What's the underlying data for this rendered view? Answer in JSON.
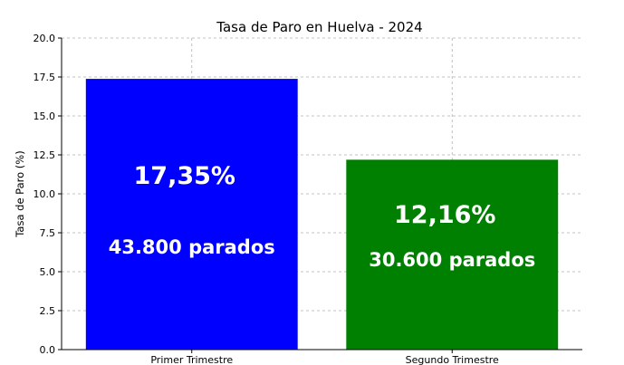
{
  "chart_data": {
    "type": "bar",
    "title": "Tasa de Paro en Huelva - 2024",
    "ylabel": "Tasa de Paro (%)",
    "xlabel": "",
    "categories": [
      "Primer Trimestre",
      "Segundo Trimestre"
    ],
    "values": [
      17.35,
      12.16
    ],
    "ylim": [
      0,
      20
    ],
    "yticks": [
      "0.0",
      "2.5",
      "5.0",
      "7.5",
      "10.0",
      "12.5",
      "15.0",
      "17.5",
      "20.0"
    ],
    "grid": true,
    "bar_colors": [
      "#0000ff",
      "#008000"
    ],
    "annotations": [
      {
        "rate": "17,35%",
        "count": "43.800 parados"
      },
      {
        "rate": "12,16%",
        "count": "30.600 parados"
      }
    ]
  }
}
